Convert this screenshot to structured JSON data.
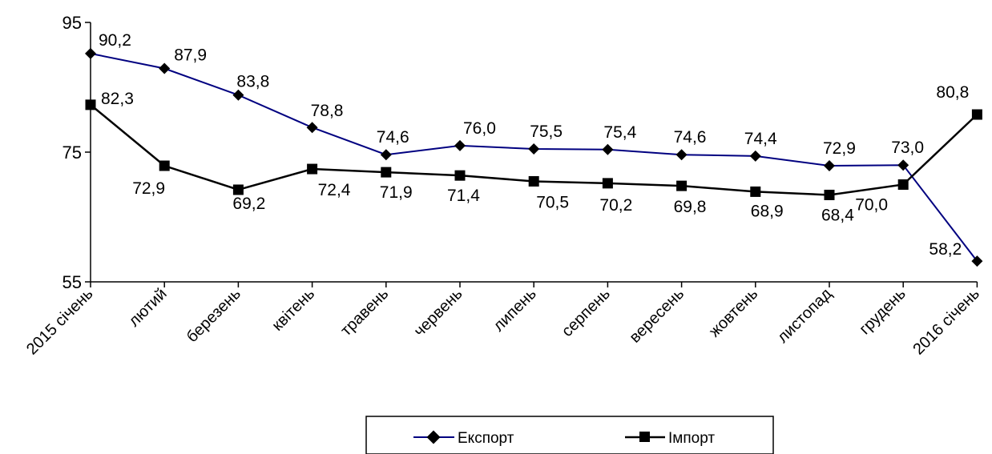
{
  "chart_data": {
    "type": "line",
    "categories": [
      "2015 січень",
      "лютий",
      "березень",
      "квітень",
      "травень",
      "червень",
      "липень",
      "серпень",
      "вересень",
      "жовтень",
      "листопад",
      "грудень",
      "2016 січень"
    ],
    "ylim": [
      55,
      95
    ],
    "yticks": [
      55,
      75,
      95
    ],
    "grid": false,
    "legend_position": "bottom",
    "series": [
      {
        "name": "Експорт",
        "color": "#000080",
        "marker": "diamond",
        "values": [
          90.2,
          87.9,
          83.8,
          78.8,
          74.6,
          76.0,
          75.5,
          75.4,
          74.6,
          74.4,
          72.9,
          73.0,
          58.2
        ],
        "labels": [
          "90,2",
          "87,9",
          "83,8",
          "78,8",
          "74,6",
          "76,0",
          "75,5",
          "75,4",
          "74,6",
          "74,4",
          "72,9",
          "73,0",
          "58,2"
        ]
      },
      {
        "name": "Імпорт",
        "color": "#000000",
        "marker": "square",
        "values": [
          82.3,
          72.9,
          69.2,
          72.4,
          71.9,
          71.4,
          70.5,
          70.2,
          69.8,
          68.9,
          68.4,
          70.0,
          80.8
        ],
        "labels": [
          "82,3",
          "72,9",
          "69,2",
          "72,4",
          "71,9",
          "71,4",
          "70,5",
          "70,2",
          "69,8",
          "68,9",
          "68,4",
          "70,0",
          "80,8"
        ]
      }
    ]
  }
}
